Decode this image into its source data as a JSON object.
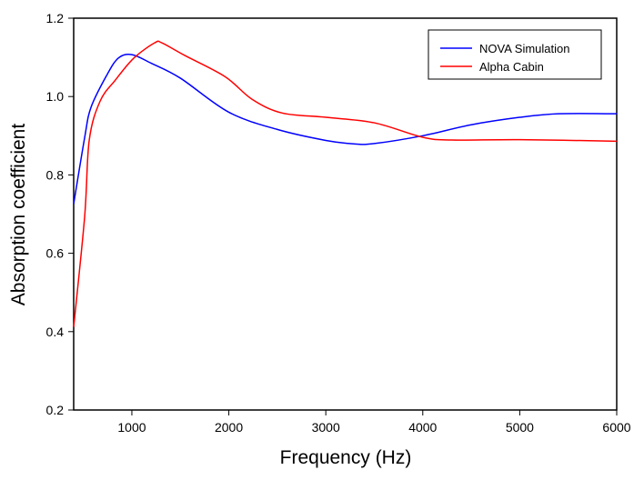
{
  "chart_data": {
    "type": "line",
    "title": "",
    "xlabel": "Frequency (Hz)",
    "ylabel": "Absorption coefficient",
    "xlim": [
      400,
      6000
    ],
    "ylim": [
      0.2,
      1.2
    ],
    "xticks": [
      1000,
      2000,
      3000,
      4000,
      5000,
      6000
    ],
    "yticks": [
      0.2,
      0.4,
      0.6,
      0.8,
      1.0,
      1.2
    ],
    "xtick_labels": [
      "1000",
      "2000",
      "3000",
      "4000",
      "5000",
      "6000"
    ],
    "ytick_labels": [
      "0.2",
      "0.4",
      "0.6",
      "0.8",
      "1.0",
      "1.2"
    ],
    "grid": false,
    "legend": "top-right",
    "series": [
      {
        "name": "NOVA Simulation",
        "color": "#0000ff",
        "x": [
          400,
          513,
          578,
          738,
          860,
          1000,
          1200,
          1500,
          2000,
          2500,
          3000,
          3300,
          3500,
          4000,
          4500,
          5000,
          5400,
          6000
        ],
        "y": [
          0.726,
          0.895,
          0.972,
          1.053,
          1.098,
          1.107,
          1.085,
          1.047,
          0.96,
          0.916,
          0.888,
          0.879,
          0.88,
          0.9,
          0.928,
          0.947,
          0.956,
          0.956
        ]
      },
      {
        "name": "Alpha Cabin",
        "color": "#ff0000",
        "x": [
          400,
          513,
          560,
          672,
          830,
          1020,
          1235,
          1310,
          1545,
          1960,
          2240,
          2550,
          3000,
          3500,
          4000,
          4300,
          5000,
          6000
        ],
        "y": [
          0.412,
          0.693,
          0.888,
          0.988,
          1.042,
          1.098,
          1.137,
          1.137,
          1.105,
          1.051,
          0.993,
          0.958,
          0.947,
          0.933,
          0.896,
          0.889,
          0.89,
          0.886
        ]
      }
    ]
  }
}
